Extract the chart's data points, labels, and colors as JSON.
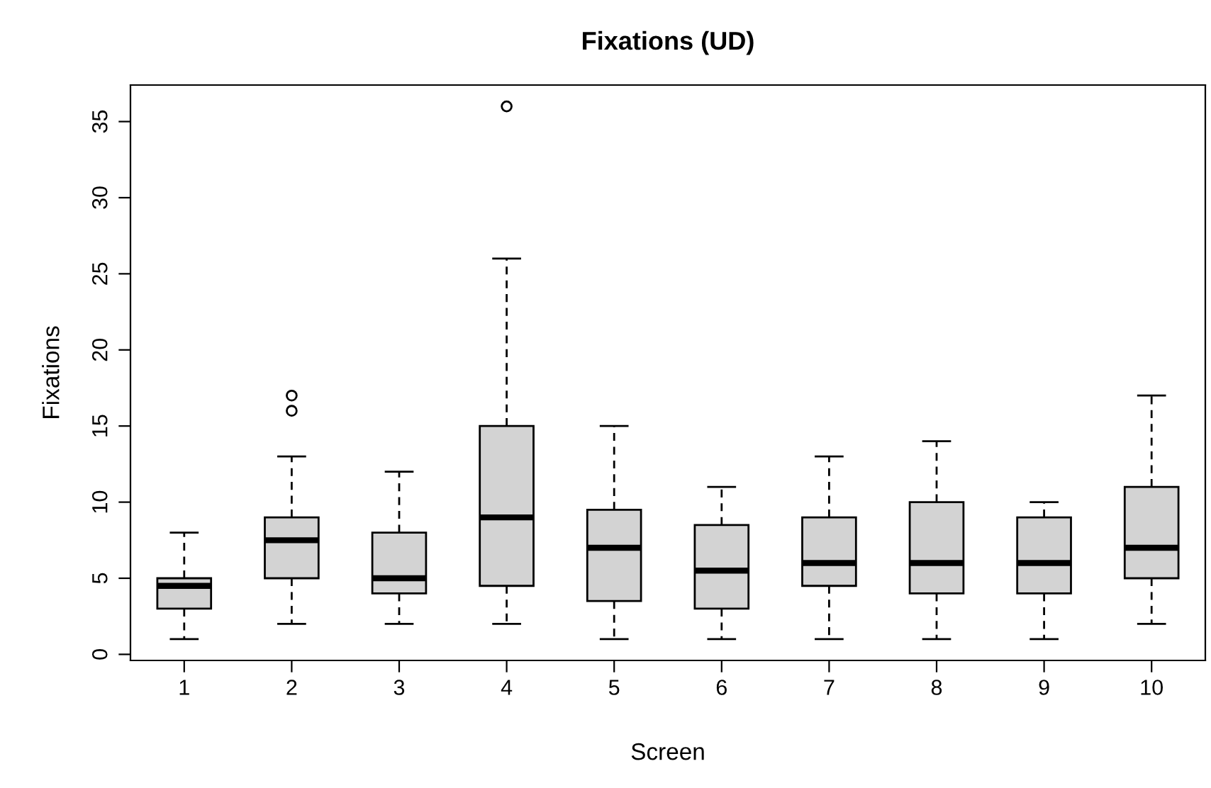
{
  "chart_data": {
    "type": "box",
    "title": "Fixations (UD)",
    "xlabel": "Screen",
    "ylabel": "Fixations",
    "color": "#d3d3d3",
    "categories": [
      "1",
      "2",
      "3",
      "4",
      "5",
      "6",
      "7",
      "8",
      "9",
      "10"
    ],
    "boxes": [
      {
        "low": 1,
        "q1": 3,
        "median": 4.5,
        "q3": 5,
        "high": 8
      },
      {
        "low": 2,
        "q1": 5,
        "median": 7.5,
        "q3": 9,
        "high": 13,
        "outliers": [
          16,
          17
        ]
      },
      {
        "low": 2,
        "q1": 4,
        "median": 5,
        "q3": 8,
        "high": 12
      },
      {
        "low": 2,
        "q1": 4.5,
        "median": 9,
        "q3": 15,
        "high": 26,
        "outliers": [
          36
        ]
      },
      {
        "low": 1,
        "q1": 3.5,
        "median": 7,
        "q3": 9.5,
        "high": 15
      },
      {
        "low": 1,
        "q1": 3,
        "median": 5.5,
        "q3": 8.5,
        "high": 11
      },
      {
        "low": 1,
        "q1": 4.5,
        "median": 6,
        "q3": 9,
        "high": 13
      },
      {
        "low": 1,
        "q1": 4,
        "median": 6,
        "q3": 10,
        "high": 14
      },
      {
        "low": 1,
        "q1": 4,
        "median": 6,
        "q3": 9,
        "high": 10
      },
      {
        "low": 2,
        "q1": 5,
        "median": 7,
        "q3": 11,
        "high": 17
      }
    ],
    "ylim": [
      -0.4,
      37.4
    ],
    "yticks": [
      0,
      5,
      10,
      15,
      20,
      25,
      30,
      35
    ]
  }
}
